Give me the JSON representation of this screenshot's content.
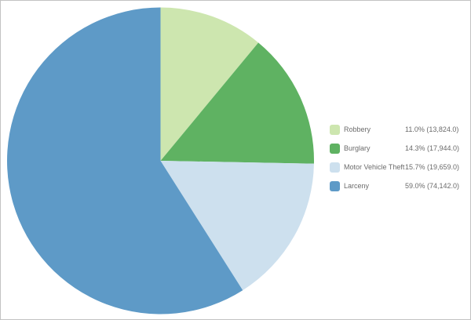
{
  "frame": {
    "background": "#ffffff",
    "border_color": "#c2c2c2"
  },
  "chart_data": {
    "type": "pie",
    "title": "",
    "categories": [
      "Robbery",
      "Burglary",
      "Motor Vehicle Theft",
      "Larceny"
    ],
    "values": [
      13824.0,
      17944.0,
      19659.0,
      74142.0
    ],
    "percentages": [
      11.0,
      14.3,
      15.7,
      59.0
    ],
    "colors": [
      "#cde6af",
      "#5fb262",
      "#cde0ee",
      "#5e9ac7"
    ],
    "start_angle_deg": 0,
    "direction": "clockwise",
    "legend_position": "right",
    "data_labels": "none"
  },
  "legend": {
    "text_color": "#6b6b6b",
    "items": [
      {
        "label": "Robbery",
        "value_text": "11.0% (13,824.0)",
        "color": "#cde6af"
      },
      {
        "label": "Burglary",
        "value_text": "14.3% (17,944.0)",
        "color": "#5fb262"
      },
      {
        "label": "Motor Vehicle Theft",
        "value_text": "15.7% (19,659.0)",
        "color": "#cde0ee"
      },
      {
        "label": "Larceny",
        "value_text": "59.0% (74,142.0)",
        "color": "#5e9ac7"
      }
    ]
  }
}
